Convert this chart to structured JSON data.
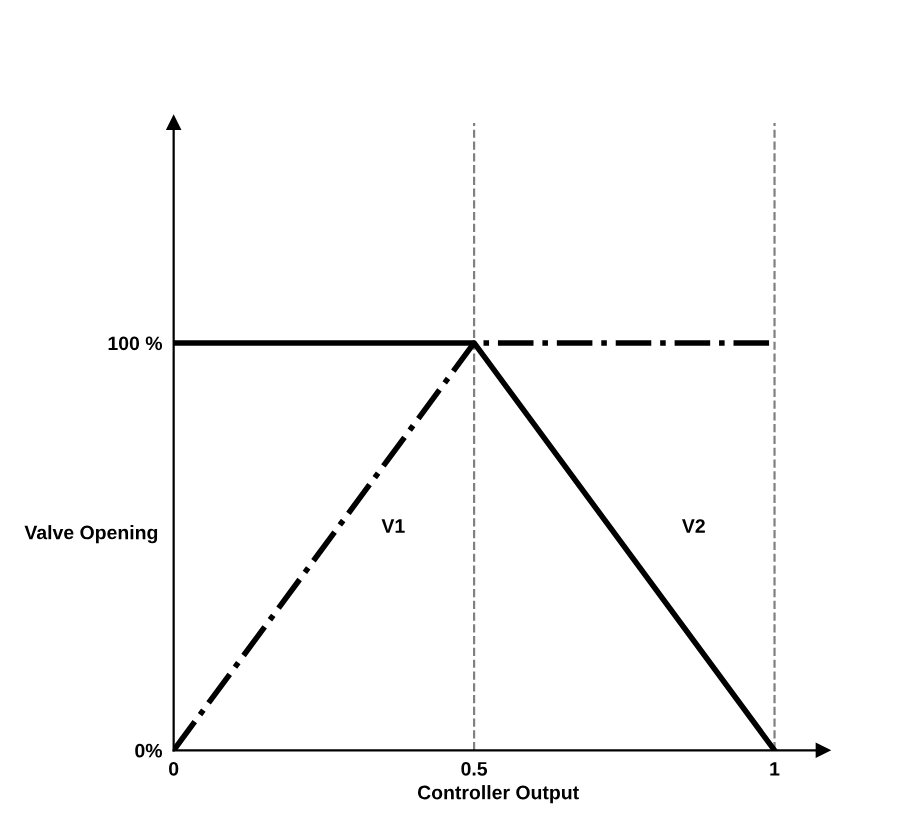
{
  "chart_data": {
    "type": "line",
    "xlabel": "Controller Output",
    "ylabel": "Valve Opening",
    "xlim": [
      0,
      1.08
    ],
    "ylim": [
      0,
      154
    ],
    "xticks": [
      0,
      0.5,
      1
    ],
    "yticks": [
      {
        "value": 0,
        "label": "0%"
      },
      {
        "value": 100,
        "label": "100 %"
      }
    ],
    "grid": false,
    "legend": false,
    "marker": "none",
    "series": [
      {
        "name": "V1",
        "color": "#000000",
        "line_style": "dashdot",
        "x": [
          0,
          0.5,
          1
        ],
        "values": [
          0,
          100,
          100
        ]
      },
      {
        "name": "V2",
        "color": "#000000",
        "line_style": "solid",
        "x": [
          0,
          0.5,
          1
        ],
        "values": [
          100,
          100,
          0
        ]
      }
    ],
    "ref_lines": [
      {
        "axis": "x",
        "value": 0.5,
        "color": "#808080",
        "line_style": "dashed"
      },
      {
        "axis": "x",
        "value": 1,
        "color": "#808080",
        "line_style": "dashed"
      }
    ]
  }
}
